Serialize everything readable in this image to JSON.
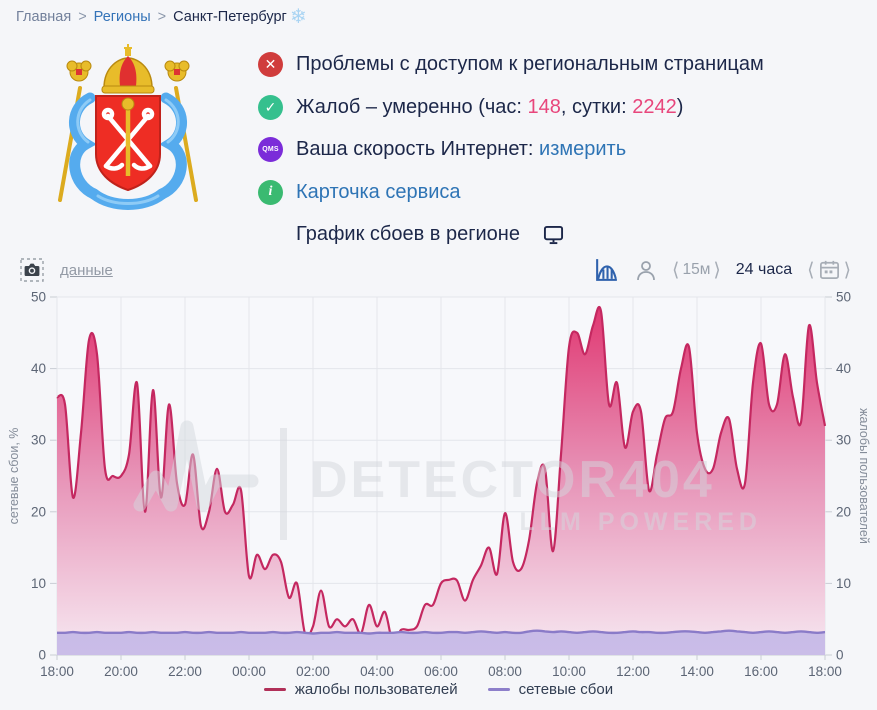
{
  "breadcrumb": {
    "home": "Главная",
    "sep": ">",
    "regions": "Регионы",
    "current": "Санкт-Петербург"
  },
  "icons": {
    "snowflake": "❄",
    "angle_left": "⟨",
    "angle_right": "⟩",
    "cross": "✕",
    "check": "✓",
    "info": "i"
  },
  "status": {
    "access_problem": "Проблемы с доступом к региональным страницам",
    "complaints_prefix": "Жалоб – умеренно (час: ",
    "complaints_hour": "148",
    "complaints_mid": ", сутки: ",
    "complaints_day": "2242",
    "complaints_suffix": ")",
    "speed_prefix": "Ваша скорость Интернет: ",
    "speed_link": "измерить",
    "service_card_link": "Карточка сервиса",
    "graph_title": "График сбоев в регионе",
    "qms_label": "QMS"
  },
  "toolbar": {
    "data_link": "данные",
    "interval_label": "15м",
    "period_label": "24 часа"
  },
  "watermark": {
    "text": "DETECTOR404",
    "subtext": "LLM POWERED"
  },
  "colors": {
    "accent_pink": "#e0336e",
    "accent_purple": "#8a7bc8",
    "link_blue": "#2e74b5",
    "dark_navy": "#1c2749",
    "badge_red": "#d03c3c",
    "badge_green": "#35c08e",
    "badge_qms_purple": "#7b2cd9",
    "badge_info_green": "#3aba71"
  },
  "chart_data": {
    "type": "area",
    "x_start": "18:00",
    "interval_min": 15,
    "x_labels": [
      "18:00",
      "20:00",
      "22:00",
      "00:00",
      "02:00",
      "04:00",
      "06:00",
      "08:00",
      "10:00",
      "12:00",
      "14:00",
      "16:00",
      "18:00"
    ],
    "yticks": [
      0,
      10,
      20,
      30,
      40,
      50
    ],
    "ylim": [
      0,
      50
    ],
    "ylabel_left": "сетевые сбои, %",
    "ylabel_right": "жалобы пользователей",
    "grid": true,
    "legend_position": "bottom",
    "series": [
      {
        "name": "жалобы пользователей",
        "line_color": "#c42860",
        "legend_color": "#b13059",
        "fill_top": "#e0336e",
        "fill_mid": "#e793b7",
        "fill_bottom": "#f7e9f2",
        "values": [
          36,
          35,
          22,
          31,
          44,
          42,
          26,
          25,
          25,
          28,
          38,
          20,
          37,
          22,
          35,
          24,
          21,
          28,
          18,
          20,
          26,
          20,
          21,
          23,
          11,
          14,
          12,
          14,
          13,
          8,
          10,
          3,
          4,
          9,
          4,
          5,
          4,
          5,
          3,
          7,
          4,
          6,
          1.7,
          3.5,
          3.5,
          4,
          7,
          7,
          10,
          10.5,
          10.4,
          7.6,
          10.5,
          12.5,
          15,
          11.3,
          19.8,
          13,
          12,
          16,
          24,
          26,
          14.5,
          28,
          43,
          45,
          42,
          46,
          48,
          35,
          38,
          29,
          34,
          34,
          23,
          28,
          33,
          34,
          40,
          43,
          31,
          26,
          26,
          31,
          33,
          26,
          24,
          38,
          43.5,
          35,
          35,
          42,
          36,
          32.5,
          46,
          38,
          32
        ]
      },
      {
        "name": "сетевые сбои",
        "line_color": "#8a7bc8",
        "legend_color": "#8d7fca",
        "fill_top": "#b6a6db",
        "fill_mid": "#bfb0e0",
        "fill_bottom": "#cabde8",
        "values": [
          3.1,
          3.1,
          3.2,
          3.1,
          3.1,
          3.2,
          3.1,
          3.1,
          3.1,
          3.2,
          3.1,
          3.1,
          3.2,
          3.1,
          3.1,
          3.1,
          3.2,
          3.1,
          3.1,
          3.2,
          3.1,
          3.1,
          3.1,
          3.2,
          3.1,
          3.1,
          3.1,
          3.2,
          3.1,
          3.1,
          3.2,
          3.1,
          3.0,
          3.1,
          3.1,
          3.2,
          3.1,
          3.1,
          3.1,
          3.0,
          3.1,
          3.1,
          3.1,
          3.2,
          3.1,
          3.1,
          3.2,
          3.1,
          3.1,
          3.2,
          3.2,
          3.1,
          3.2,
          3.3,
          3.2,
          3.1,
          3.2,
          3.1,
          3.1,
          3.3,
          3.4,
          3.3,
          3.2,
          3.3,
          3.2,
          3.1,
          3.2,
          3.3,
          3.2,
          3.1,
          3.1,
          3.2,
          3.3,
          3.2,
          3.2,
          3.1,
          3.1,
          3.2,
          3.3,
          3.3,
          3.2,
          3.1,
          3.2,
          3.3,
          3.4,
          3.3,
          3.2,
          3.1,
          3.2,
          3.3,
          3.2,
          3.1,
          3.2,
          3.3,
          3.2,
          3.1,
          3.2
        ]
      }
    ]
  }
}
